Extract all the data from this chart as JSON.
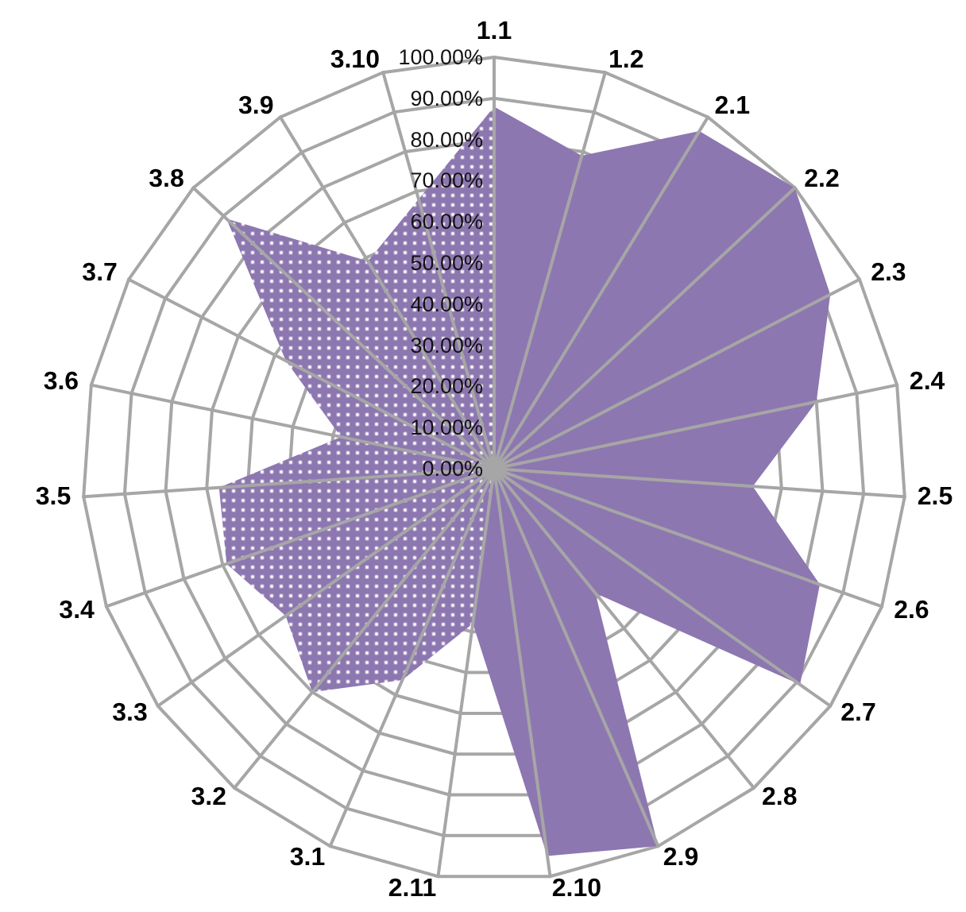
{
  "chart_data": {
    "type": "radar",
    "categories": [
      "1.1",
      "1.2",
      "2.1",
      "2.2",
      "2.3",
      "2.4",
      "2.5",
      "2.6",
      "2.7",
      "2.8",
      "2.9",
      "2.10",
      "2.11",
      "3.1",
      "3.2",
      "3.3",
      "3.4",
      "3.5",
      "3.6",
      "3.7",
      "3.8",
      "3.9",
      "3.10"
    ],
    "series": [
      {
        "color": "#8d77b0",
        "values": [
          88,
          79,
          96,
          100,
          92,
          80,
          63,
          84,
          91,
          39,
          100,
          95,
          38,
          0,
          0,
          0,
          0,
          0,
          0,
          0,
          0,
          0,
          0
        ]
      },
      {
        "color": "#8d77b0",
        "values": [
          88,
          0,
          0,
          0,
          0,
          0,
          0,
          0,
          0,
          0,
          0,
          0,
          38,
          56,
          70,
          62,
          69,
          67,
          38,
          57,
          89,
          59,
          68
        ]
      }
    ],
    "ylim": [
      0,
      100
    ],
    "yticks": [
      {
        "value": 0,
        "label": "0.00%"
      },
      {
        "value": 10,
        "label": "10.00%"
      },
      {
        "value": 20,
        "label": "20.00%"
      },
      {
        "value": 30,
        "label": "30.00%"
      },
      {
        "value": 40,
        "label": "40.00%"
      },
      {
        "value": 50,
        "label": "50.00%"
      },
      {
        "value": 60,
        "label": "60.00%"
      },
      {
        "value": 70,
        "label": "70.00%"
      },
      {
        "value": 80,
        "label": "80.00%"
      },
      {
        "value": 90,
        "label": "90.00%"
      },
      {
        "value": 100,
        "label": "100.00%"
      }
    ],
    "grid": true
  }
}
